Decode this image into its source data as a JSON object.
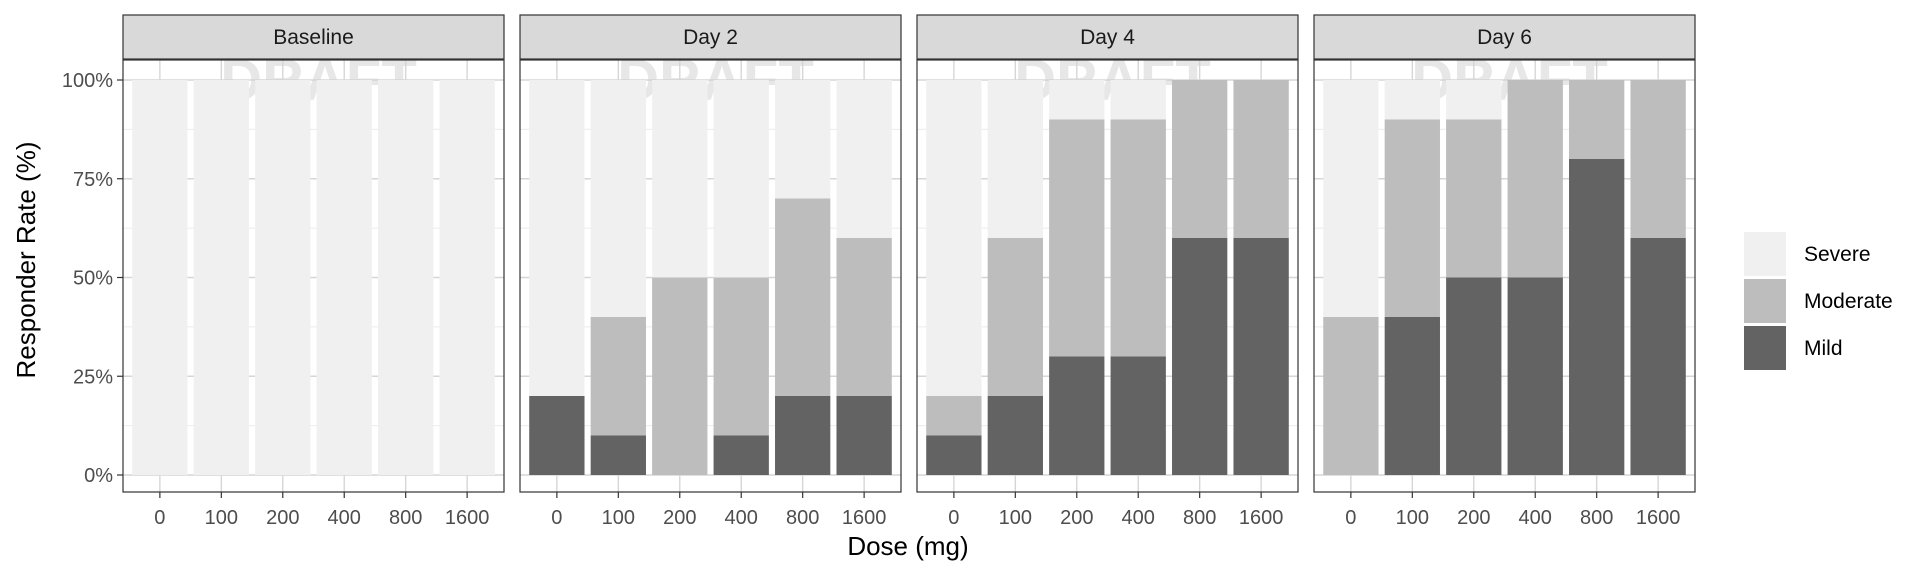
{
  "chart_data": {
    "type": "bar",
    "stacked": true,
    "facet_by": "timepoint",
    "facets": [
      "Baseline",
      "Day 2",
      "Day 4",
      "Day 6"
    ],
    "categories": [
      "0",
      "100",
      "200",
      "400",
      "800",
      "1600"
    ],
    "xlabel": "Dose (mg)",
    "ylabel": "Responder Rate (%)",
    "ylim": [
      0,
      100
    ],
    "yticks": [
      0,
      25,
      50,
      75,
      100
    ],
    "ytick_labels": [
      "0%",
      "25%",
      "50%",
      "75%",
      "100%"
    ],
    "grid": true,
    "legend_position": "right",
    "watermark": "DRAFT",
    "series": [
      {
        "name": "Mild",
        "color": "#636363",
        "values": {
          "Baseline": [
            0,
            0,
            0,
            0,
            0,
            0
          ],
          "Day 2": [
            20,
            10,
            0,
            10,
            20,
            20
          ],
          "Day 4": [
            10,
            20,
            30,
            30,
            60,
            60
          ],
          "Day 6": [
            0,
            40,
            50,
            50,
            80,
            60
          ]
        }
      },
      {
        "name": "Moderate",
        "color": "#bdbdbd",
        "values": {
          "Baseline": [
            0,
            0,
            0,
            0,
            0,
            0
          ],
          "Day 2": [
            0,
            30,
            50,
            40,
            50,
            40
          ],
          "Day 4": [
            10,
            40,
            60,
            60,
            40,
            40
          ],
          "Day 6": [
            40,
            50,
            40,
            50,
            20,
            40
          ]
        }
      },
      {
        "name": "Severe",
        "color": "#f0f0f0",
        "values": {
          "Baseline": [
            100,
            100,
            100,
            100,
            100,
            100
          ],
          "Day 2": [
            80,
            60,
            50,
            50,
            30,
            40
          ],
          "Day 4": [
            80,
            40,
            10,
            10,
            0,
            0
          ],
          "Day 6": [
            60,
            10,
            10,
            0,
            0,
            0
          ]
        }
      }
    ],
    "legend_order": [
      "Severe",
      "Moderate",
      "Mild"
    ]
  }
}
